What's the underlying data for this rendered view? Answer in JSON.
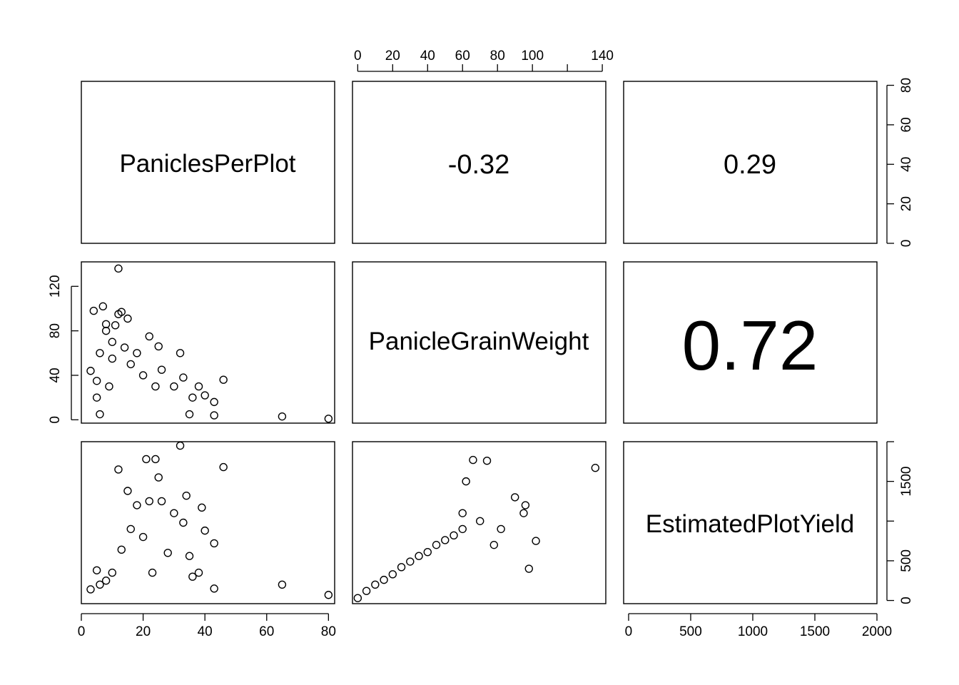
{
  "chart_data": {
    "type": "scatter",
    "variables": [
      "PaniclesPerPlot",
      "PanicleGrainWeight",
      "EstimatedPlotYield"
    ],
    "correlations": [
      {
        "row": 0,
        "col": 1,
        "label": "-0.32",
        "value": -0.32
      },
      {
        "row": 0,
        "col": 2,
        "label": "0.29",
        "value": 0.29
      },
      {
        "row": 1,
        "col": 2,
        "label": "0.72",
        "value": 0.72
      }
    ],
    "axes": {
      "PaniclesPerPlot": {
        "range": [
          0,
          82
        ],
        "ticks": [
          0,
          20,
          40,
          60,
          80
        ],
        "tick_labels": [
          "0",
          "20",
          "40",
          "60",
          "80"
        ]
      },
      "PanicleGrainWeight": {
        "range": [
          -3,
          142
        ],
        "ticks": [
          0,
          20,
          40,
          60,
          80,
          100,
          120,
          140
        ],
        "tick_labels": [
          "0",
          "20",
          "40",
          "60",
          "80",
          "100",
          "",
          "140"
        ],
        "side_ticks": [
          0,
          40,
          80,
          120
        ],
        "side_tick_labels": [
          "0",
          "40",
          "80",
          "120"
        ]
      },
      "EstimatedPlotYield": {
        "range": [
          -40,
          2000
        ],
        "ticks": [
          0,
          500,
          1000,
          1500,
          2000
        ],
        "tick_labels": [
          "0",
          "500",
          "1000",
          "1500",
          "2000"
        ],
        "side_ticks": [
          0,
          500,
          1000,
          1500,
          2000
        ],
        "side_tick_labels": [
          "0",
          "500",
          "",
          "1500",
          ""
        ]
      }
    },
    "series": [
      {
        "name": "",
        "points": [
          [
            3,
            44
          ],
          [
            4,
            98
          ],
          [
            5,
            20
          ],
          [
            5,
            35
          ],
          [
            6,
            60
          ],
          [
            6,
            5
          ],
          [
            7,
            102
          ],
          [
            8,
            80
          ],
          [
            8,
            86
          ],
          [
            9,
            30
          ],
          [
            10,
            55
          ],
          [
            10,
            70
          ],
          [
            11,
            85
          ],
          [
            12,
            136
          ],
          [
            12,
            95
          ],
          [
            13,
            97
          ],
          [
            14,
            65
          ],
          [
            15,
            91
          ],
          [
            16,
            50
          ],
          [
            18,
            60
          ],
          [
            20,
            40
          ],
          [
            22,
            75
          ],
          [
            24,
            30
          ],
          [
            25,
            66
          ],
          [
            26,
            45
          ],
          [
            30,
            30
          ],
          [
            32,
            60
          ],
          [
            33,
            38
          ],
          [
            35,
            5
          ],
          [
            36,
            20
          ],
          [
            38,
            30
          ],
          [
            40,
            22
          ],
          [
            43,
            16
          ],
          [
            43,
            4
          ],
          [
            46,
            36
          ],
          [
            65,
            3
          ],
          [
            80,
            1
          ]
        ],
        "yield": [
          [
            3,
            140
          ],
          [
            5,
            380
          ],
          [
            6,
            200
          ],
          [
            8,
            250
          ],
          [
            10,
            350
          ],
          [
            12,
            1650
          ],
          [
            13,
            640
          ],
          [
            15,
            1380
          ],
          [
            16,
            900
          ],
          [
            18,
            1200
          ],
          [
            20,
            800
          ],
          [
            21,
            1780
          ],
          [
            22,
            1250
          ],
          [
            23,
            350
          ],
          [
            24,
            1780
          ],
          [
            25,
            1550
          ],
          [
            26,
            1250
          ],
          [
            28,
            600
          ],
          [
            30,
            1100
          ],
          [
            32,
            1950
          ],
          [
            33,
            980
          ],
          [
            34,
            1320
          ],
          [
            35,
            560
          ],
          [
            36,
            300
          ],
          [
            38,
            350
          ],
          [
            39,
            1170
          ],
          [
            40,
            880
          ],
          [
            43,
            720
          ],
          [
            43,
            150
          ],
          [
            46,
            1680
          ],
          [
            65,
            200
          ],
          [
            80,
            70
          ]
        ],
        "gw_yield": [
          [
            0,
            30
          ],
          [
            5,
            120
          ],
          [
            10,
            200
          ],
          [
            15,
            260
          ],
          [
            20,
            330
          ],
          [
            25,
            420
          ],
          [
            30,
            490
          ],
          [
            35,
            560
          ],
          [
            40,
            610
          ],
          [
            45,
            700
          ],
          [
            50,
            760
          ],
          [
            55,
            820
          ],
          [
            60,
            900
          ],
          [
            62,
            1500
          ],
          [
            60,
            1100
          ],
          [
            66,
            1770
          ],
          [
            70,
            1000
          ],
          [
            74,
            1760
          ],
          [
            78,
            700
          ],
          [
            82,
            900
          ],
          [
            90,
            1300
          ],
          [
            95,
            1100
          ],
          [
            96,
            1200
          ],
          [
            98,
            400
          ],
          [
            102,
            750
          ],
          [
            136,
            1670
          ]
        ]
      }
    ],
    "title": "",
    "xlabel": "",
    "ylabel": "",
    "grid": false,
    "legend": "none"
  }
}
